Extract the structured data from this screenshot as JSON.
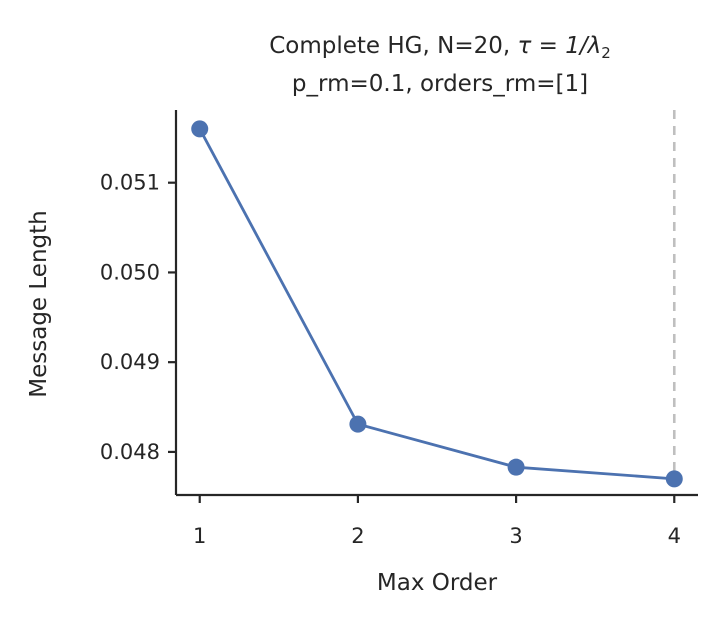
{
  "chart_data": {
    "type": "line",
    "title_line1_prefix": "Complete HG, N=20, ",
    "title_line1_math": "τ = 1/λ",
    "title_line1_subscript": "2",
    "title_line2": "p_rm=0.1, orders_rm=[1]",
    "xlabel": "Max Order",
    "ylabel": "Message Length",
    "x": [
      1,
      2,
      3,
      4
    ],
    "xticks": [
      "1",
      "2",
      "3",
      "4"
    ],
    "xlim": [
      0.85,
      4.15
    ],
    "yticks": [
      "0.048",
      "0.049",
      "0.050",
      "0.051"
    ],
    "ytick_values": [
      0.048,
      0.049,
      0.05,
      0.051
    ],
    "ylim": [
      0.04752,
      0.05181
    ],
    "series": [
      {
        "values": [
          0.0516,
          0.04831,
          0.04783,
          0.0477
        ]
      }
    ],
    "reference_line": {
      "orientation": "vertical",
      "x": 4,
      "style": "dashed"
    },
    "colors": {
      "series": "#4c72b0",
      "reference_line": "#bfbfbf",
      "axes": "#262626"
    },
    "grid": false,
    "legend": "none",
    "spines": "left-bottom"
  }
}
